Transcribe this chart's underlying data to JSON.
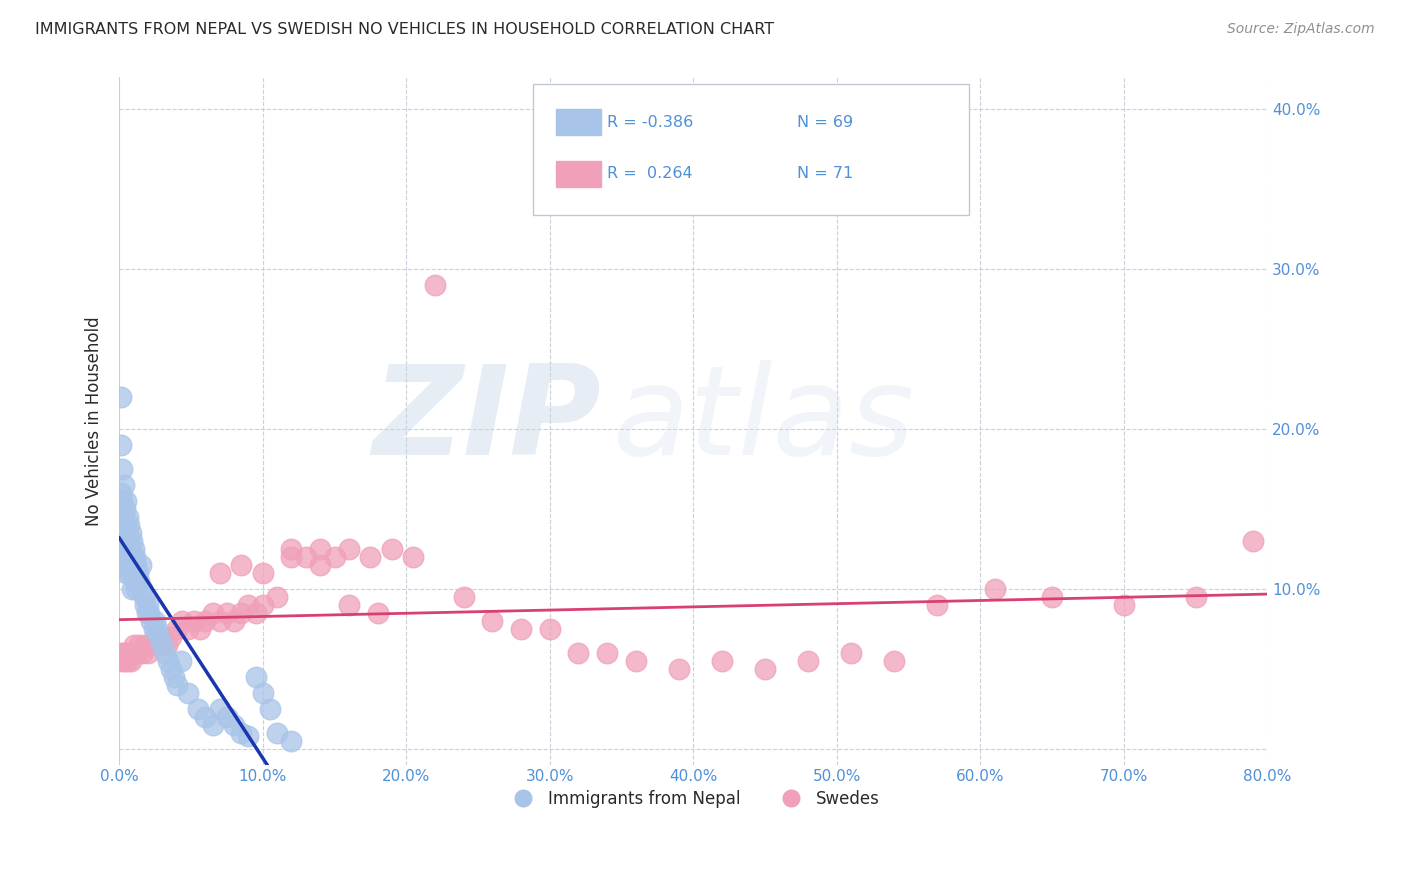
{
  "title": "IMMIGRANTS FROM NEPAL VS SWEDISH NO VEHICLES IN HOUSEHOLD CORRELATION CHART",
  "source": "Source: ZipAtlas.com",
  "ylabel": "No Vehicles in Household",
  "watermark_zip": "ZIP",
  "watermark_atlas": "atlas",
  "legend_labels": [
    "Immigrants from Nepal",
    "Swedes"
  ],
  "nepal_color": "#a8c4e8",
  "swedes_color": "#f0a0b8",
  "nepal_line_color": "#1a35b0",
  "swedes_line_color": "#d84070",
  "title_color": "#2a2a2a",
  "axis_label_color": "#5090d8",
  "grid_color": "#c8d0dc",
  "background_color": "#ffffff",
  "legend_box_color": "#e8edf5",
  "legend_border_color": "#c0c8d8",
  "xlim": [
    0.0,
    0.8
  ],
  "ylim": [
    -0.01,
    0.42
  ],
  "yticks": [
    0.0,
    0.1,
    0.2,
    0.3,
    0.4
  ],
  "xticks": [
    0.0,
    0.1,
    0.2,
    0.3,
    0.4,
    0.5,
    0.6,
    0.7,
    0.8
  ],
  "nepal_x": [
    0.001,
    0.001,
    0.001,
    0.002,
    0.002,
    0.002,
    0.003,
    0.003,
    0.003,
    0.003,
    0.004,
    0.004,
    0.004,
    0.005,
    0.005,
    0.005,
    0.005,
    0.006,
    0.006,
    0.006,
    0.007,
    0.007,
    0.007,
    0.008,
    0.008,
    0.009,
    0.009,
    0.009,
    0.01,
    0.01,
    0.011,
    0.011,
    0.012,
    0.012,
    0.013,
    0.014,
    0.015,
    0.016,
    0.017,
    0.018,
    0.019,
    0.02,
    0.021,
    0.022,
    0.024,
    0.025,
    0.026,
    0.028,
    0.03,
    0.032,
    0.034,
    0.036,
    0.038,
    0.04,
    0.043,
    0.048,
    0.055,
    0.06,
    0.065,
    0.07,
    0.075,
    0.08,
    0.085,
    0.09,
    0.095,
    0.1,
    0.105,
    0.11,
    0.12
  ],
  "nepal_y": [
    0.22,
    0.19,
    0.16,
    0.175,
    0.155,
    0.14,
    0.165,
    0.145,
    0.13,
    0.115,
    0.15,
    0.135,
    0.12,
    0.155,
    0.14,
    0.125,
    0.11,
    0.145,
    0.13,
    0.115,
    0.14,
    0.125,
    0.11,
    0.135,
    0.12,
    0.13,
    0.115,
    0.1,
    0.125,
    0.11,
    0.12,
    0.105,
    0.115,
    0.1,
    0.11,
    0.105,
    0.115,
    0.1,
    0.095,
    0.09,
    0.085,
    0.09,
    0.085,
    0.08,
    0.075,
    0.08,
    0.075,
    0.07,
    0.065,
    0.06,
    0.055,
    0.05,
    0.045,
    0.04,
    0.055,
    0.035,
    0.025,
    0.02,
    0.015,
    0.025,
    0.02,
    0.015,
    0.01,
    0.008,
    0.045,
    0.035,
    0.025,
    0.01,
    0.005
  ],
  "swedes_x": [
    0.001,
    0.002,
    0.003,
    0.004,
    0.005,
    0.006,
    0.007,
    0.008,
    0.009,
    0.01,
    0.012,
    0.014,
    0.016,
    0.018,
    0.02,
    0.022,
    0.025,
    0.028,
    0.03,
    0.033,
    0.036,
    0.04,
    0.044,
    0.048,
    0.052,
    0.056,
    0.06,
    0.065,
    0.07,
    0.075,
    0.08,
    0.085,
    0.09,
    0.095,
    0.1,
    0.11,
    0.12,
    0.13,
    0.14,
    0.15,
    0.16,
    0.175,
    0.19,
    0.205,
    0.22,
    0.24,
    0.26,
    0.28,
    0.3,
    0.32,
    0.34,
    0.36,
    0.39,
    0.42,
    0.45,
    0.48,
    0.51,
    0.54,
    0.57,
    0.61,
    0.65,
    0.7,
    0.75,
    0.79,
    0.07,
    0.085,
    0.1,
    0.12,
    0.14,
    0.16,
    0.18
  ],
  "swedes_y": [
    0.06,
    0.055,
    0.06,
    0.055,
    0.06,
    0.055,
    0.06,
    0.055,
    0.06,
    0.065,
    0.06,
    0.065,
    0.06,
    0.065,
    0.06,
    0.065,
    0.07,
    0.065,
    0.07,
    0.065,
    0.07,
    0.075,
    0.08,
    0.075,
    0.08,
    0.075,
    0.08,
    0.085,
    0.08,
    0.085,
    0.08,
    0.085,
    0.09,
    0.085,
    0.09,
    0.095,
    0.125,
    0.12,
    0.125,
    0.12,
    0.125,
    0.12,
    0.125,
    0.12,
    0.29,
    0.095,
    0.08,
    0.075,
    0.075,
    0.06,
    0.06,
    0.055,
    0.05,
    0.055,
    0.05,
    0.055,
    0.06,
    0.055,
    0.09,
    0.1,
    0.095,
    0.09,
    0.095,
    0.13,
    0.11,
    0.115,
    0.11,
    0.12,
    0.115,
    0.09,
    0.085
  ]
}
